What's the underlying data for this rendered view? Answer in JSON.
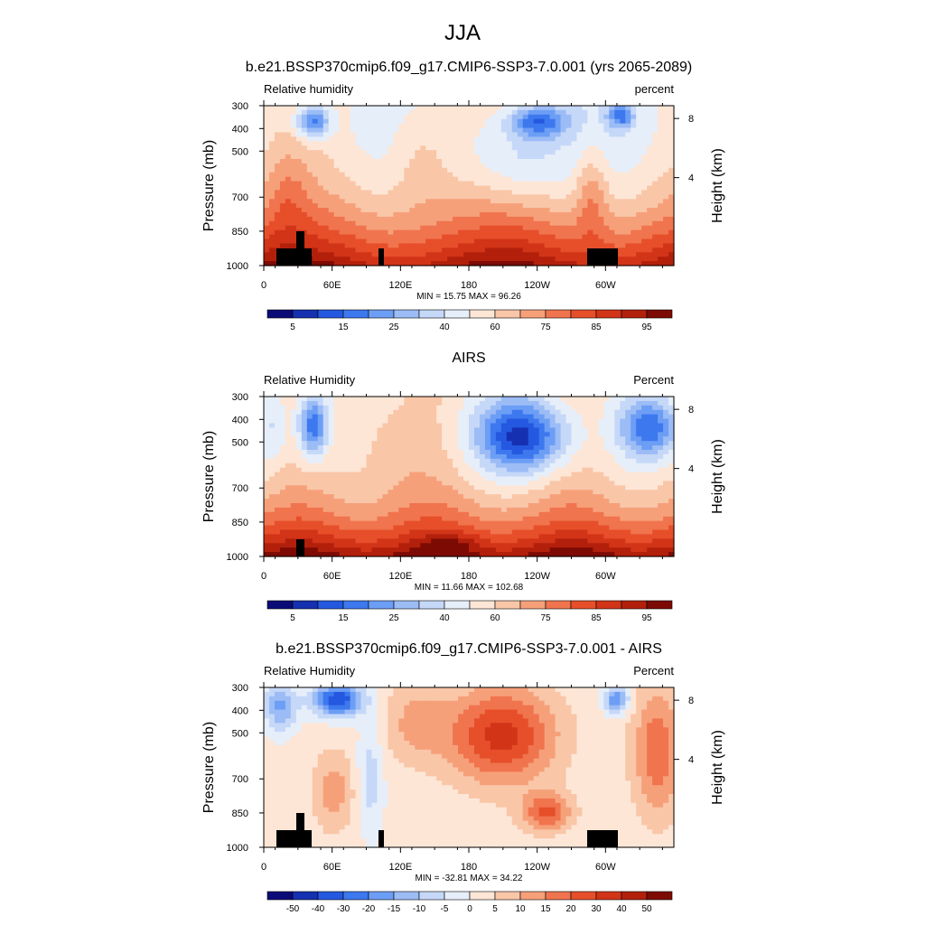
{
  "figure": {
    "title": "JJA"
  },
  "chart_data": [
    {
      "type": "heatmap",
      "title": "b.e21.BSSP370cmip6.f09_g17.CMIP6-SSP3-7.0.001 (yrs 2065-2089)",
      "left_label": "Relative humidity",
      "right_label": "percent",
      "ylabel": "Pressure (mb)",
      "ylabel_right": "Height (km)",
      "y_ticks": [
        "300",
        "400",
        "500",
        "700",
        "850",
        "1000"
      ],
      "x_ticks": [
        "0",
        "60E",
        "120E",
        "180",
        "120W",
        "60W"
      ],
      "height_ticks": [
        "8",
        "4"
      ],
      "stats": "MIN =  15.75  MAX =  96.26",
      "colorbar_labels": [
        "5",
        "15",
        "25",
        "40",
        "60",
        "75",
        "85",
        "95"
      ],
      "levels": [
        5,
        10,
        15,
        20,
        25,
        30,
        40,
        50,
        60,
        70,
        75,
        80,
        85,
        90,
        95
      ]
    },
    {
      "type": "heatmap",
      "title": "AIRS",
      "left_label": "Relative Humidity",
      "right_label": "Percent",
      "ylabel": "Pressure (mb)",
      "ylabel_right": "Height (km)",
      "y_ticks": [
        "300",
        "400",
        "500",
        "700",
        "850",
        "1000"
      ],
      "x_ticks": [
        "0",
        "60E",
        "120E",
        "180",
        "120W",
        "60W"
      ],
      "height_ticks": [
        "8",
        "4"
      ],
      "stats": "MIN =  11.66  MAX = 102.68",
      "colorbar_labels": [
        "5",
        "15",
        "25",
        "40",
        "60",
        "75",
        "85",
        "95"
      ],
      "levels": [
        5,
        10,
        15,
        20,
        25,
        30,
        40,
        50,
        60,
        70,
        75,
        80,
        85,
        90,
        95
      ]
    },
    {
      "type": "heatmap",
      "title": "b.e21.BSSP370cmip6.f09_g17.CMIP6-SSP3-7.0.001 - AIRS",
      "left_label": "Relative Humidity",
      "right_label": "Percent",
      "ylabel": "Pressure (mb)",
      "ylabel_right": "Height (km)",
      "y_ticks": [
        "300",
        "400",
        "500",
        "700",
        "850",
        "1000"
      ],
      "x_ticks": [
        "0",
        "60E",
        "120E",
        "180",
        "120W",
        "60W"
      ],
      "height_ticks": [
        "8",
        "4"
      ],
      "stats": "MIN = -32.81  MAX =  34.22",
      "colorbar_labels": [
        "-50",
        "-40",
        "-30",
        "-20",
        "-15",
        "-10",
        "-5",
        "0",
        "5",
        "10",
        "15",
        "20",
        "30",
        "40",
        "50"
      ],
      "levels": [
        -50,
        -40,
        -30,
        -20,
        -15,
        -10,
        -5,
        0,
        5,
        10,
        15,
        20,
        30,
        40,
        50
      ]
    }
  ],
  "colors": {
    "colormap": [
      "#0b0b78",
      "#1530b0",
      "#2458e0",
      "#3d78ee",
      "#6d9ef5",
      "#9cbcf6",
      "#c6d8f8",
      "#e6eefa",
      "#fde6d6",
      "#f9c6a8",
      "#f6a07a",
      "#f0744e",
      "#e64f2a",
      "#d23418",
      "#b2200c",
      "#7d0b04"
    ]
  }
}
